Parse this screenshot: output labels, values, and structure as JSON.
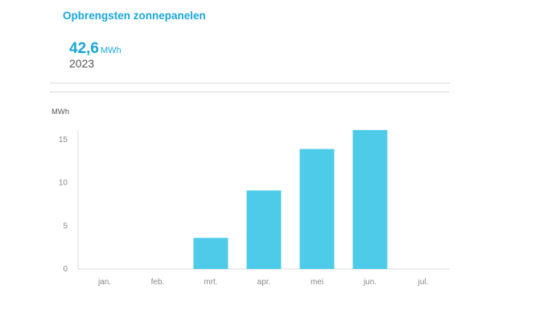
{
  "header": {
    "title": "Opbrengsten zonnepanelen",
    "total_value": "42,6",
    "total_unit": "MWh",
    "year": "2023"
  },
  "colors": {
    "accent": "#1aa7d8",
    "bar": "#4dcbe8"
  },
  "chart_data": {
    "type": "bar",
    "categories": [
      "jan.",
      "feb.",
      "mrt.",
      "apr.",
      "mei",
      "jun.",
      "jul."
    ],
    "values": [
      0,
      0,
      3.6,
      9.1,
      13.9,
      16.1,
      0
    ],
    "ylabel": "MWh",
    "ylim": [
      0,
      16
    ],
    "yticks": [
      0,
      5,
      10,
      15
    ],
    "grid": false
  }
}
